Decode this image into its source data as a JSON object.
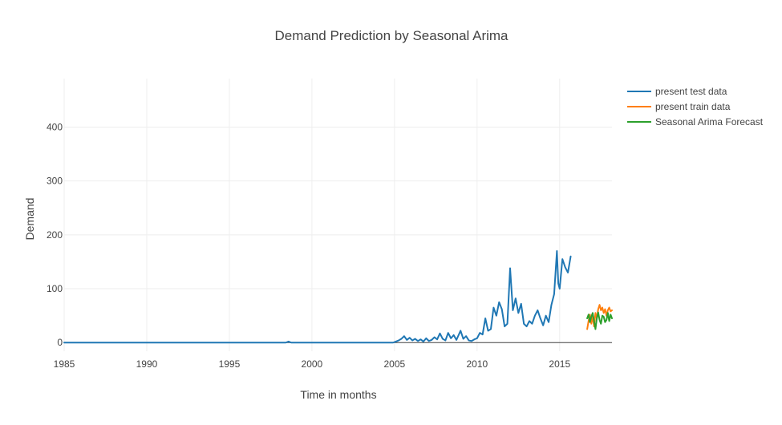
{
  "chart_data": {
    "type": "line",
    "title": "Demand Prediction by Seasonal Arima",
    "xlabel": "Time in months",
    "ylabel": "Demand",
    "x_axis_type": "date",
    "xlim": [
      "1985-01",
      "2018-03"
    ],
    "ylim": [
      -16,
      490
    ],
    "x_ticks": [
      "1985",
      "1990",
      "1995",
      "2000",
      "2005",
      "2010",
      "2015"
    ],
    "x_tick_dates": [
      "1985-01",
      "1990-01",
      "1995-01",
      "2000-01",
      "2005-01",
      "2010-01",
      "2015-01"
    ],
    "y_ticks": [
      0,
      100,
      200,
      300,
      400
    ],
    "grid": true,
    "legend_position": "top-right",
    "colors": {
      "present test data": "#1f77b4",
      "present train data": "#ff7f0e",
      "Seasonal Arima Forecast": "#2ca02c",
      "grid": "#eeeeee",
      "zeroline": "#444444",
      "text": "#444444"
    },
    "series": [
      {
        "name": "present test data",
        "color": "#1f77b4",
        "points": [
          [
            "1985-01",
            0
          ],
          [
            "1998-06",
            0
          ],
          [
            "1998-08",
            2
          ],
          [
            "1998-10",
            0
          ],
          [
            "2004-12",
            0
          ],
          [
            "2005-02",
            2
          ],
          [
            "2005-04",
            4
          ],
          [
            "2005-06",
            7
          ],
          [
            "2005-08",
            12
          ],
          [
            "2005-10",
            5
          ],
          [
            "2005-12",
            9
          ],
          [
            "2006-02",
            4
          ],
          [
            "2006-04",
            7
          ],
          [
            "2006-06",
            3
          ],
          [
            "2006-08",
            6
          ],
          [
            "2006-10",
            2
          ],
          [
            "2006-12",
            8
          ],
          [
            "2007-02",
            3
          ],
          [
            "2007-04",
            5
          ],
          [
            "2007-06",
            10
          ],
          [
            "2007-08",
            6
          ],
          [
            "2007-10",
            17
          ],
          [
            "2007-12",
            7
          ],
          [
            "2008-02",
            4
          ],
          [
            "2008-04",
            18
          ],
          [
            "2008-06",
            8
          ],
          [
            "2008-08",
            14
          ],
          [
            "2008-10",
            5
          ],
          [
            "2009-01",
            22
          ],
          [
            "2009-03",
            7
          ],
          [
            "2009-05",
            12
          ],
          [
            "2009-07",
            4
          ],
          [
            "2009-09",
            3
          ],
          [
            "2009-11",
            6
          ],
          [
            "2010-01",
            8
          ],
          [
            "2010-03",
            18
          ],
          [
            "2010-05",
            15
          ],
          [
            "2010-07",
            45
          ],
          [
            "2010-09",
            22
          ],
          [
            "2010-11",
            25
          ],
          [
            "2011-01",
            65
          ],
          [
            "2011-03",
            50
          ],
          [
            "2011-05",
            75
          ],
          [
            "2011-07",
            62
          ],
          [
            "2011-09",
            30
          ],
          [
            "2011-11",
            35
          ],
          [
            "2012-01",
            138
          ],
          [
            "2012-03",
            60
          ],
          [
            "2012-05",
            82
          ],
          [
            "2012-07",
            55
          ],
          [
            "2012-09",
            72
          ],
          [
            "2012-11",
            35
          ],
          [
            "2013-01",
            30
          ],
          [
            "2013-03",
            40
          ],
          [
            "2013-05",
            35
          ],
          [
            "2013-07",
            50
          ],
          [
            "2013-09",
            60
          ],
          [
            "2013-11",
            45
          ],
          [
            "2014-01",
            32
          ],
          [
            "2014-03",
            50
          ],
          [
            "2014-05",
            38
          ],
          [
            "2014-07",
            70
          ],
          [
            "2014-09",
            90
          ],
          [
            "2014-11",
            170
          ],
          [
            "2014-12",
            110
          ],
          [
            "2015-01",
            100
          ],
          [
            "2015-03",
            155
          ],
          [
            "2015-05",
            140
          ],
          [
            "2015-07",
            130
          ],
          [
            "2015-09",
            160
          ]
        ]
      },
      {
        "name": "present train data",
        "color": "#ff7f0e",
        "points": [
          [
            "2016-09",
            25
          ],
          [
            "2016-10",
            40
          ],
          [
            "2016-11",
            52
          ],
          [
            "2016-12",
            35
          ],
          [
            "2017-01",
            48
          ],
          [
            "2017-02",
            30
          ],
          [
            "2017-03",
            55
          ],
          [
            "2017-04",
            45
          ],
          [
            "2017-05",
            62
          ],
          [
            "2017-06",
            70
          ],
          [
            "2017-07",
            60
          ],
          [
            "2017-08",
            65
          ],
          [
            "2017-09",
            55
          ],
          [
            "2017-10",
            62
          ],
          [
            "2017-11",
            50
          ],
          [
            "2017-12",
            60
          ],
          [
            "2018-01",
            65
          ],
          [
            "2018-02",
            58
          ],
          [
            "2018-03",
            60
          ]
        ]
      },
      {
        "name": "Seasonal Arima Forecast",
        "color": "#2ca02c",
        "points": [
          [
            "2016-09",
            45
          ],
          [
            "2016-10",
            52
          ],
          [
            "2016-11",
            38
          ],
          [
            "2016-12",
            48
          ],
          [
            "2017-01",
            55
          ],
          [
            "2017-02",
            40
          ],
          [
            "2017-03",
            25
          ],
          [
            "2017-04",
            45
          ],
          [
            "2017-05",
            56
          ],
          [
            "2017-06",
            42
          ],
          [
            "2017-07",
            35
          ],
          [
            "2017-08",
            50
          ],
          [
            "2017-09",
            48
          ],
          [
            "2017-10",
            38
          ],
          [
            "2017-11",
            42
          ],
          [
            "2017-12",
            55
          ],
          [
            "2018-01",
            40
          ],
          [
            "2018-02",
            52
          ],
          [
            "2018-03",
            45
          ]
        ]
      }
    ]
  }
}
